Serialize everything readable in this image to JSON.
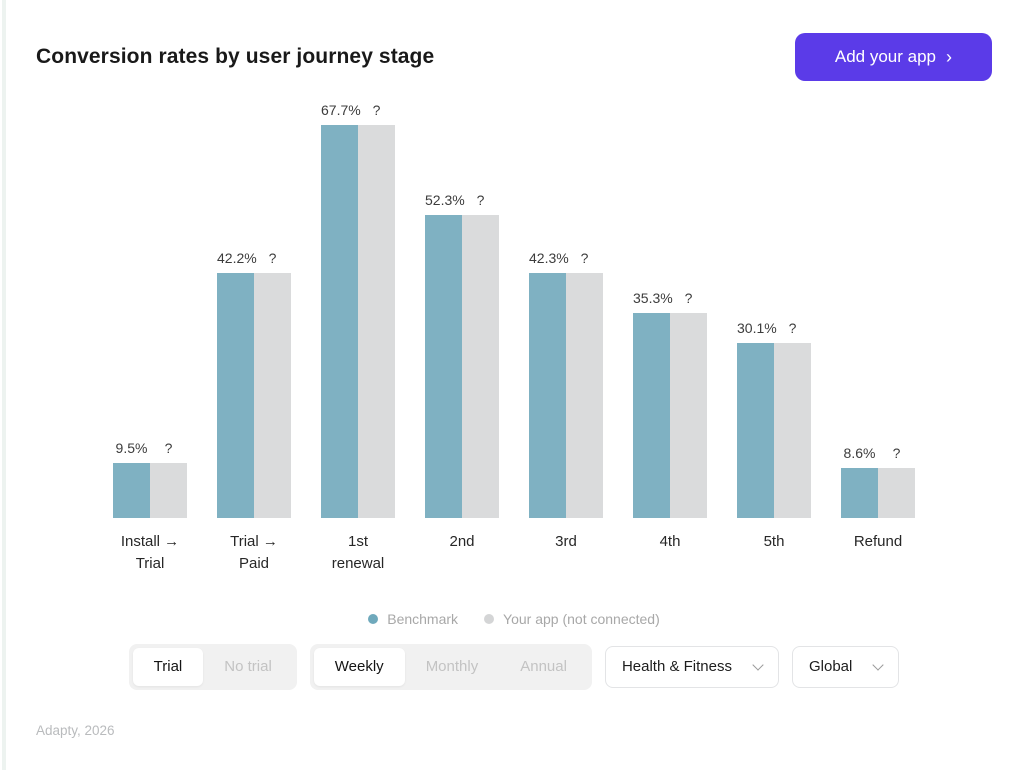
{
  "header": {
    "title": "Conversion rates by user journey stage",
    "cta_label": "Add your app",
    "cta_chevron": "›"
  },
  "chart_data": {
    "type": "bar",
    "title": "Conversion rates by user journey stage",
    "categories": [
      "Install → Trial",
      "Trial → Paid",
      "1st renewal",
      "2nd",
      "3rd",
      "4th",
      "5th",
      "Refund"
    ],
    "category_lines": [
      [
        "Install →",
        "Trial"
      ],
      [
        "Trial →",
        "Paid"
      ],
      [
        "1st",
        "renewal"
      ],
      [
        "2nd"
      ],
      [
        "3rd"
      ],
      [
        "4th"
      ],
      [
        "5th"
      ],
      [
        "Refund"
      ]
    ],
    "series": [
      {
        "name": "Benchmark",
        "color": "#7FB1C2",
        "values": [
          9.5,
          42.2,
          67.7,
          52.3,
          42.3,
          35.3,
          30.1,
          8.6
        ],
        "labels": [
          "9.5%",
          "42.2%",
          "67.7%",
          "52.3%",
          "42.3%",
          "35.3%",
          "30.1%",
          "8.6%"
        ]
      },
      {
        "name": "Your app (not connected)",
        "color": "#DADBDC",
        "values": [
          null,
          null,
          null,
          null,
          null,
          null,
          null,
          null
        ],
        "labels": [
          "?",
          "?",
          "?",
          "?",
          "?",
          "?",
          "?",
          "?"
        ]
      }
    ],
    "ylim": [
      0,
      70
    ],
    "grid": false,
    "value_labels": true,
    "legend_position": "bottom"
  },
  "legend": {
    "benchmark": "Benchmark",
    "your_app": "Your app (not connected)"
  },
  "controls": {
    "trial_toggle": {
      "options": [
        "Trial",
        "No trial"
      ],
      "selected": "Trial"
    },
    "period_toggle": {
      "options": [
        "Weekly",
        "Monthly",
        "Annual"
      ],
      "selected": "Weekly"
    },
    "category_dropdown": {
      "value": "Health & Fitness"
    },
    "region_dropdown": {
      "value": "Global"
    }
  },
  "footer": {
    "source": "Adapty, 2026"
  }
}
